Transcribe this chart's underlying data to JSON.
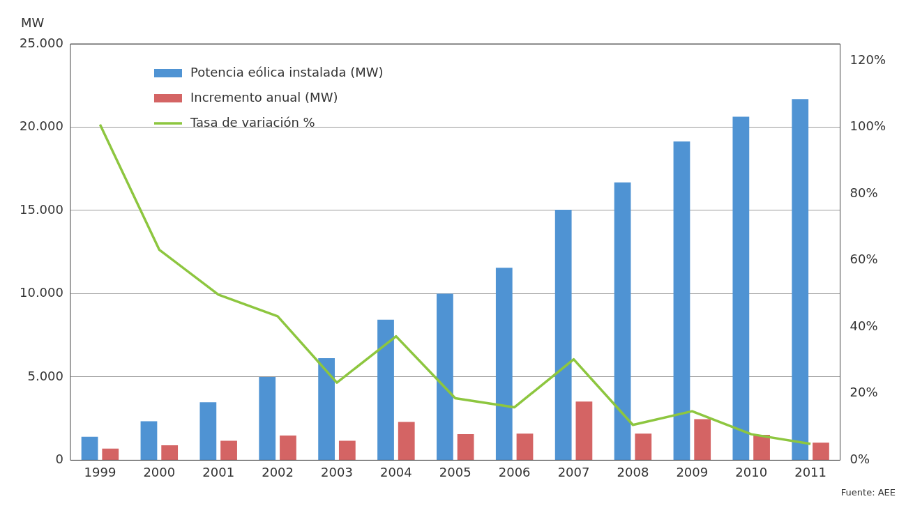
{
  "chart_data": {
    "type": "bar",
    "ylabel": "MW",
    "categories": [
      "1999",
      "2000",
      "2001",
      "2002",
      "2003",
      "2004",
      "2005",
      "2006",
      "2007",
      "2008",
      "2009",
      "2010",
      "2011"
    ],
    "series": [
      {
        "name": "Potencia eólica instalada (MW)",
        "color": "#4f93d3",
        "values": [
          1410,
          2340,
          3480,
          5000,
          6130,
          8440,
          10000,
          11560,
          15040,
          16680,
          19140,
          20630,
          21680
        ]
      },
      {
        "name": "Incremento anual (MW)",
        "color": "#d46464",
        "values": [
          700,
          900,
          1170,
          1480,
          1170,
          2300,
          1560,
          1600,
          3520,
          1600,
          2460,
          1520,
          1050
        ]
      },
      {
        "name": "Tasa de variación %",
        "type": "line",
        "axis": "y2",
        "color": "#8dc63f",
        "values": [
          100.8,
          63.2,
          49.7,
          43.2,
          23.3,
          37.2,
          18.6,
          15.9,
          30.3,
          10.6,
          14.7,
          7.8,
          4.9
        ]
      }
    ],
    "ylim": [
      0,
      25000
    ],
    "yticks": [
      {
        "value": 0,
        "label": "0"
      },
      {
        "value": 5000,
        "label": "5.000"
      },
      {
        "value": 10000,
        "label": "10.000"
      },
      {
        "value": 15000,
        "label": "15.000"
      },
      {
        "value": 20000,
        "label": "20.000"
      },
      {
        "value": 25000,
        "label": "25.000"
      }
    ],
    "y2lim": [
      0,
      125
    ],
    "y2ticks": [
      {
        "value": 0,
        "label": "0%"
      },
      {
        "value": 20,
        "label": "20%"
      },
      {
        "value": 40,
        "label": "40%"
      },
      {
        "value": 60,
        "label": "60%"
      },
      {
        "value": 80,
        "label": "80%"
      },
      {
        "value": 100,
        "label": "100%"
      },
      {
        "value": 120,
        "label": "120%"
      }
    ],
    "grid": "y",
    "legend": "top left",
    "marker": "none",
    "line_style": "solid",
    "annotations": [
      "Fuente: AEE"
    ]
  }
}
